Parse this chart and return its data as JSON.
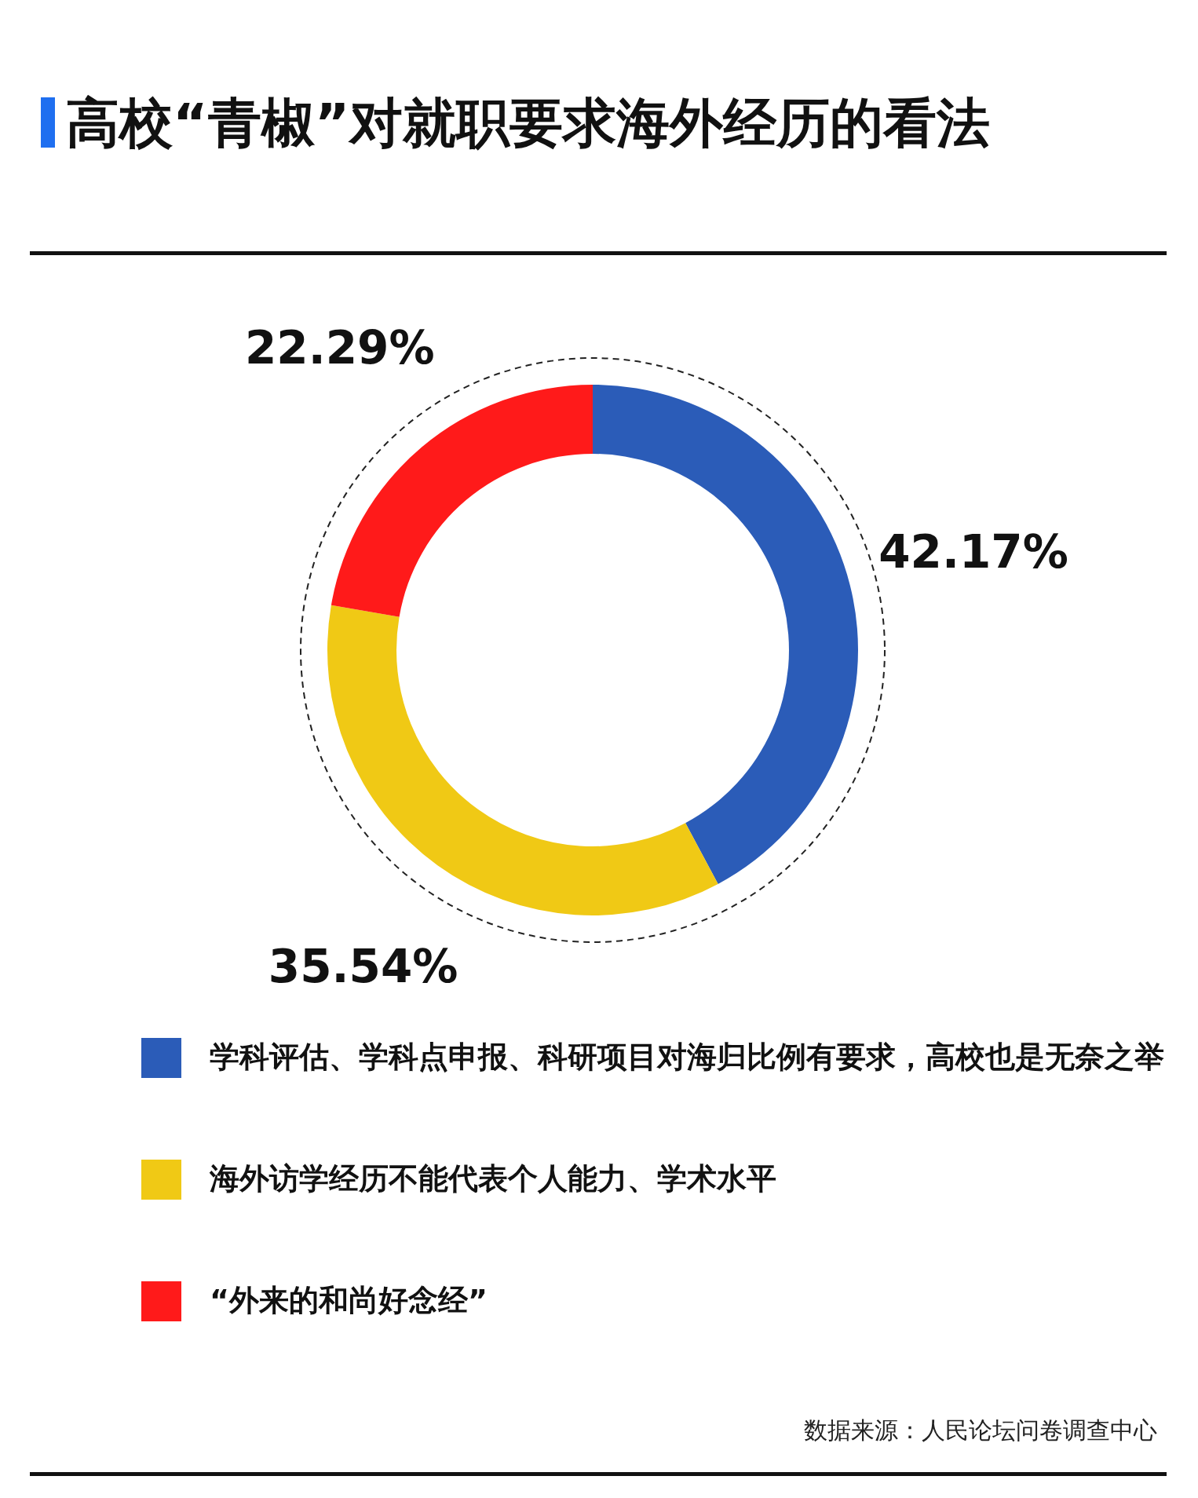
{
  "chart_data": {
    "type": "donut",
    "title": "高校“青椒”对就职要求海外经历的看法",
    "categories": [
      "学科评估、学科点申报、科研项目对海归比例有要求，高校也是无奈之举",
      "海外访学经历不能代表个人能力、学术水平",
      "“外来的和尚好念经”"
    ],
    "values": [
      42.17,
      35.54,
      22.29
    ],
    "colors": [
      "#2b5cb8",
      "#f0c915",
      "#ff1a1a"
    ],
    "value_labels": [
      "42.17%",
      "35.54%",
      "22.29%"
    ],
    "legend": "bottom",
    "annotations": [
      "数据来源：人民论坛问卷调查中心"
    ]
  }
}
